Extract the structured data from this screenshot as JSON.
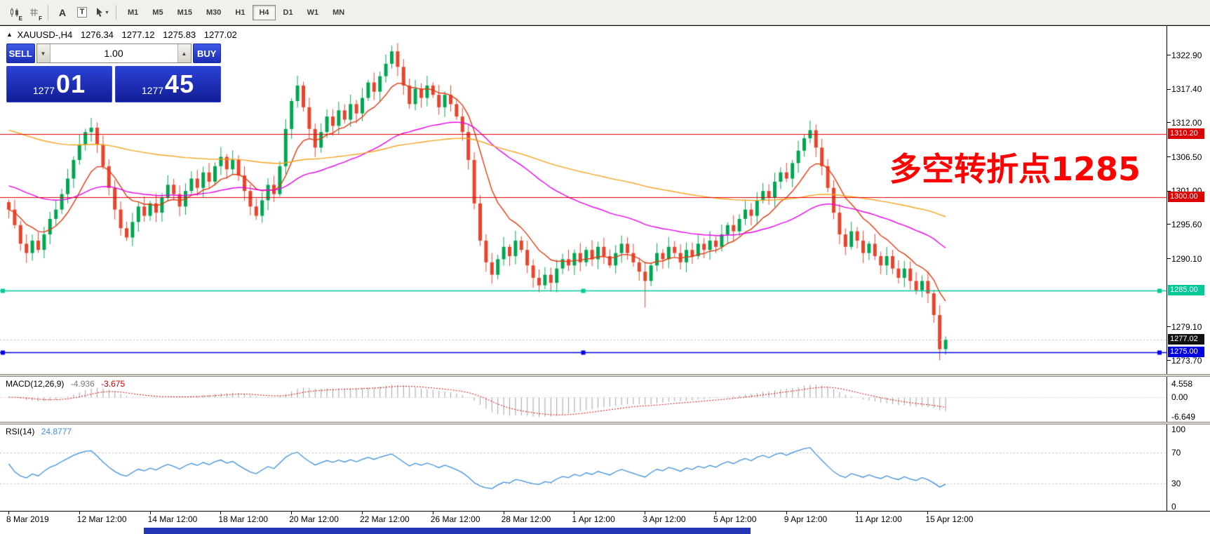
{
  "window": {
    "taskbar_color": "#2336B4"
  },
  "toolbar": {
    "caret": "▾",
    "icons": [
      {
        "label": "E",
        "name": "candlestick-chart-icon"
      },
      {
        "label": "F",
        "name": "grid-icon"
      },
      {
        "label": "A",
        "name": "text-label-icon"
      },
      {
        "label": "T",
        "name": "text-tool-icon"
      },
      {
        "label": "",
        "name": "crosshair-tool-icon"
      }
    ],
    "timeframes": [
      "M1",
      "M5",
      "M15",
      "M30",
      "H1",
      "H4",
      "D1",
      "W1",
      "MN"
    ],
    "active_timeframe": "H4"
  },
  "chart": {
    "symbol_header": {
      "marker": "▲",
      "symbol": "XAUUSD-,H4",
      "open": "1276.34",
      "high": "1277.12",
      "low": "1275.83",
      "close": "1277.02"
    },
    "trade_panel": {
      "sell_label": "SELL",
      "buy_label": "BUY",
      "volume": "1.00",
      "vol_down_glyph": "▼",
      "vol_up_glyph": "▲",
      "sell_price_small": "1277",
      "sell_price_big": "01",
      "buy_price_small": "1277",
      "buy_price_big": "45"
    },
    "annotation": {
      "text": "多空转折点1285",
      "color": "#FF0000"
    },
    "up_color": "#00A651",
    "down_color": "#E8442C",
    "price_top": 1327.6,
    "price_bottom": 1271.5,
    "axis_ticks": [
      "1322.90",
      "1317.40",
      "1312.00",
      "1306.50",
      "1301.00",
      "1295.60",
      "1290.10",
      "1279.10",
      "1273.70"
    ],
    "price_tags": [
      {
        "value": "1310.20",
        "price": 1310.2,
        "bg": "#DD0000"
      },
      {
        "value": "1300.00",
        "price": 1300.0,
        "bg": "#DD0000"
      },
      {
        "value": "1285.00",
        "price": 1285.0,
        "bg": "#00C896"
      },
      {
        "value": "1277.02",
        "price": 1277.02,
        "bg": "#111111"
      },
      {
        "value": "1275.00",
        "price": 1275.0,
        "bg": "#0000DD"
      }
    ],
    "hlines": [
      {
        "price": 1310.2,
        "color": "#E00000",
        "style": "solid",
        "width": 1.2,
        "handles": false
      },
      {
        "price": 1300.0,
        "color": "#E00000",
        "style": "solid",
        "width": 1.2,
        "handles": false
      },
      {
        "price": 1285.0,
        "color": "#00C896",
        "style": "solid",
        "width": 1.5,
        "handles": true
      },
      {
        "price": 1277.02,
        "color": "#B8B8B8",
        "style": "dotted",
        "width": 1,
        "handles": false
      },
      {
        "price": 1275.0,
        "color": "#0000EE",
        "style": "solid",
        "width": 1.5,
        "handles": true
      }
    ]
  },
  "macd": {
    "label": "MACD(12,26,9)",
    "value_main": "-4.936",
    "value_signal": "-3.675",
    "ticks": [
      "4.558",
      "0.00",
      "-6.649"
    ],
    "tick_values": [
      4.558,
      0,
      -6.649
    ]
  },
  "rsi": {
    "label": "RSI(14)",
    "value": "24.8777",
    "ticks": [
      "100",
      "70",
      "30",
      "0"
    ],
    "tick_values": [
      100,
      70,
      30,
      0
    ],
    "levels": [
      70,
      30
    ]
  },
  "chart_data": {
    "type": "candlestick",
    "symbol": "XAUUSD-",
    "timeframe": "H4",
    "last_bar": {
      "open": 1276.34,
      "high": 1277.12,
      "low": 1275.83,
      "close": 1277.02
    },
    "current_price": 1277.02,
    "y_range": [
      1271.5,
      1327.6
    ],
    "horizontal_levels": [
      1310.2,
      1300.0,
      1285.0,
      1275.0
    ],
    "closes": [
      1298,
      1295.5,
      1292.5,
      1291,
      1293,
      1291.5,
      1294,
      1296.5,
      1298,
      1300.5,
      1303,
      1306,
      1308.5,
      1310.5,
      1311.2,
      1308.5,
      1305,
      1301.5,
      1298,
      1295,
      1293.5,
      1296,
      1298.5,
      1297,
      1299,
      1297.5,
      1300,
      1302,
      1300.5,
      1298.5,
      1301,
      1303,
      1301.5,
      1304,
      1302.5,
      1305,
      1306.5,
      1304.5,
      1306,
      1303.5,
      1301,
      1298.5,
      1297,
      1299.5,
      1302,
      1300.5,
      1305,
      1311,
      1315.5,
      1318,
      1314.5,
      1311,
      1308,
      1310.5,
      1313,
      1311.5,
      1314,
      1312.5,
      1315,
      1313.5,
      1316,
      1318.5,
      1317,
      1319.5,
      1321.5,
      1323.5,
      1321,
      1318,
      1315,
      1317.5,
      1316,
      1318,
      1316.5,
      1314.5,
      1316.5,
      1315,
      1313,
      1310.5,
      1306,
      1299,
      1293,
      1289.5,
      1287.5,
      1290,
      1292,
      1290.5,
      1293,
      1291.5,
      1289,
      1287,
      1285.8,
      1287.5,
      1286.2,
      1288.5,
      1290,
      1289,
      1291,
      1289.5,
      1291.5,
      1290,
      1292,
      1290.5,
      1289,
      1291,
      1292.5,
      1291,
      1289.5,
      1288,
      1286.5,
      1289,
      1291,
      1290,
      1292,
      1291,
      1289.5,
      1291.5,
      1290.5,
      1292.5,
      1291.5,
      1293,
      1292,
      1294,
      1295.5,
      1294.5,
      1296.5,
      1298,
      1297,
      1299.5,
      1301,
      1300,
      1302.5,
      1304,
      1303,
      1305.5,
      1307.5,
      1309.5,
      1310.8,
      1308,
      1305,
      1301.5,
      1297.5,
      1294,
      1292,
      1294.5,
      1293,
      1291,
      1292.5,
      1290.5,
      1289,
      1290.5,
      1288.5,
      1287,
      1288.5,
      1286.5,
      1285,
      1286.5,
      1284.5,
      1281,
      1275.5,
      1277.02
    ],
    "special_highs": {
      "49": 1319.6,
      "65": 1324.4
    },
    "special_lows": {
      "108": 1282.2,
      "158": 1273.7,
      "159": 1274.6
    },
    "x_labels": [
      "8 Mar 2019",
      "12 Mar 12:00",
      "14 Mar 12:00",
      "18 Mar 12:00",
      "20 Mar 12:00",
      "22 Mar 12:00",
      "26 Mar 12:00",
      "28 Mar 12:00",
      "1 Apr 12:00",
      "3 Apr 12:00",
      "5 Apr 12:00",
      "9 Apr 12:00",
      "11 Apr 12:00",
      "15 Apr 12:00"
    ],
    "candles_per_label": 12,
    "moving_averages": [
      {
        "period": 10,
        "color": "#E03A10",
        "seed": null
      },
      {
        "period": 45,
        "color": "#E800E8",
        "seed": 1302
      },
      {
        "period": 120,
        "color": "#F6A21C",
        "seed": 1311
      }
    ],
    "macd_params": [
      12,
      26,
      9
    ],
    "rsi_period": 14
  }
}
